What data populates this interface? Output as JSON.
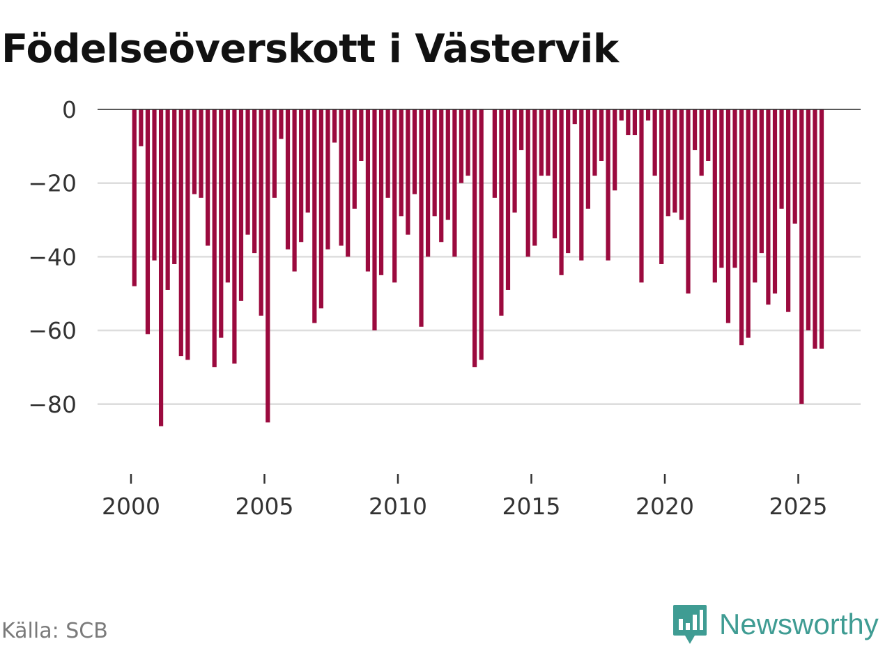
{
  "title": "Födelseöverskott i Västervik",
  "source": "Källa: SCB",
  "brand": {
    "name": "Newsworthy",
    "icon": "newsworthy-logo-icon",
    "color": "#3f9c93"
  },
  "chart_data": {
    "type": "bar",
    "title": "Födelseöverskott i Västervik",
    "xlabel": "",
    "ylabel": "",
    "frequency": "quarterly",
    "start": "2000-Q1",
    "bar_color": "#9b0a3e",
    "ylim": [
      -97,
      0
    ],
    "y_ticks": [
      0,
      -20,
      -40,
      -60,
      -80
    ],
    "y_tick_labels": [
      "0",
      "−20",
      "−40",
      "−60",
      "−80"
    ],
    "x_ticks": [
      2000,
      2005,
      2010,
      2015,
      2020,
      2025
    ],
    "x_tick_labels": [
      "2000",
      "2005",
      "2010",
      "2015",
      "2020",
      "2025"
    ],
    "grid": true,
    "values": [
      -48,
      -10,
      -61,
      -41,
      -86,
      -49,
      -42,
      -67,
      -68,
      -23,
      -24,
      -37,
      -70,
      -62,
      -47,
      -69,
      -52,
      -34,
      -39,
      -56,
      -85,
      -24,
      -8,
      -38,
      -44,
      -36,
      -28,
      -58,
      -54,
      -38,
      -9,
      -37,
      -40,
      -27,
      -14,
      -44,
      -60,
      -45,
      -24,
      -47,
      -29,
      -34,
      -23,
      -59,
      -40,
      -29,
      -36,
      -30,
      -40,
      -20,
      -18,
      -70,
      -68,
      0,
      -24,
      -56,
      -49,
      -28,
      -11,
      -40,
      -37,
      -18,
      -18,
      -35,
      -45,
      -39,
      -4,
      -41,
      -27,
      -18,
      -14,
      -41,
      -22,
      -3,
      -7,
      -7,
      -47,
      -3,
      -18,
      -42,
      -29,
      -28,
      -30,
      -50,
      -11,
      -18,
      -14,
      -47,
      -43,
      -58,
      -43,
      -64,
      -62,
      -47,
      -39,
      -53,
      -50,
      -27,
      -55,
      -31,
      -80,
      -60,
      -65,
      -65
    ]
  }
}
